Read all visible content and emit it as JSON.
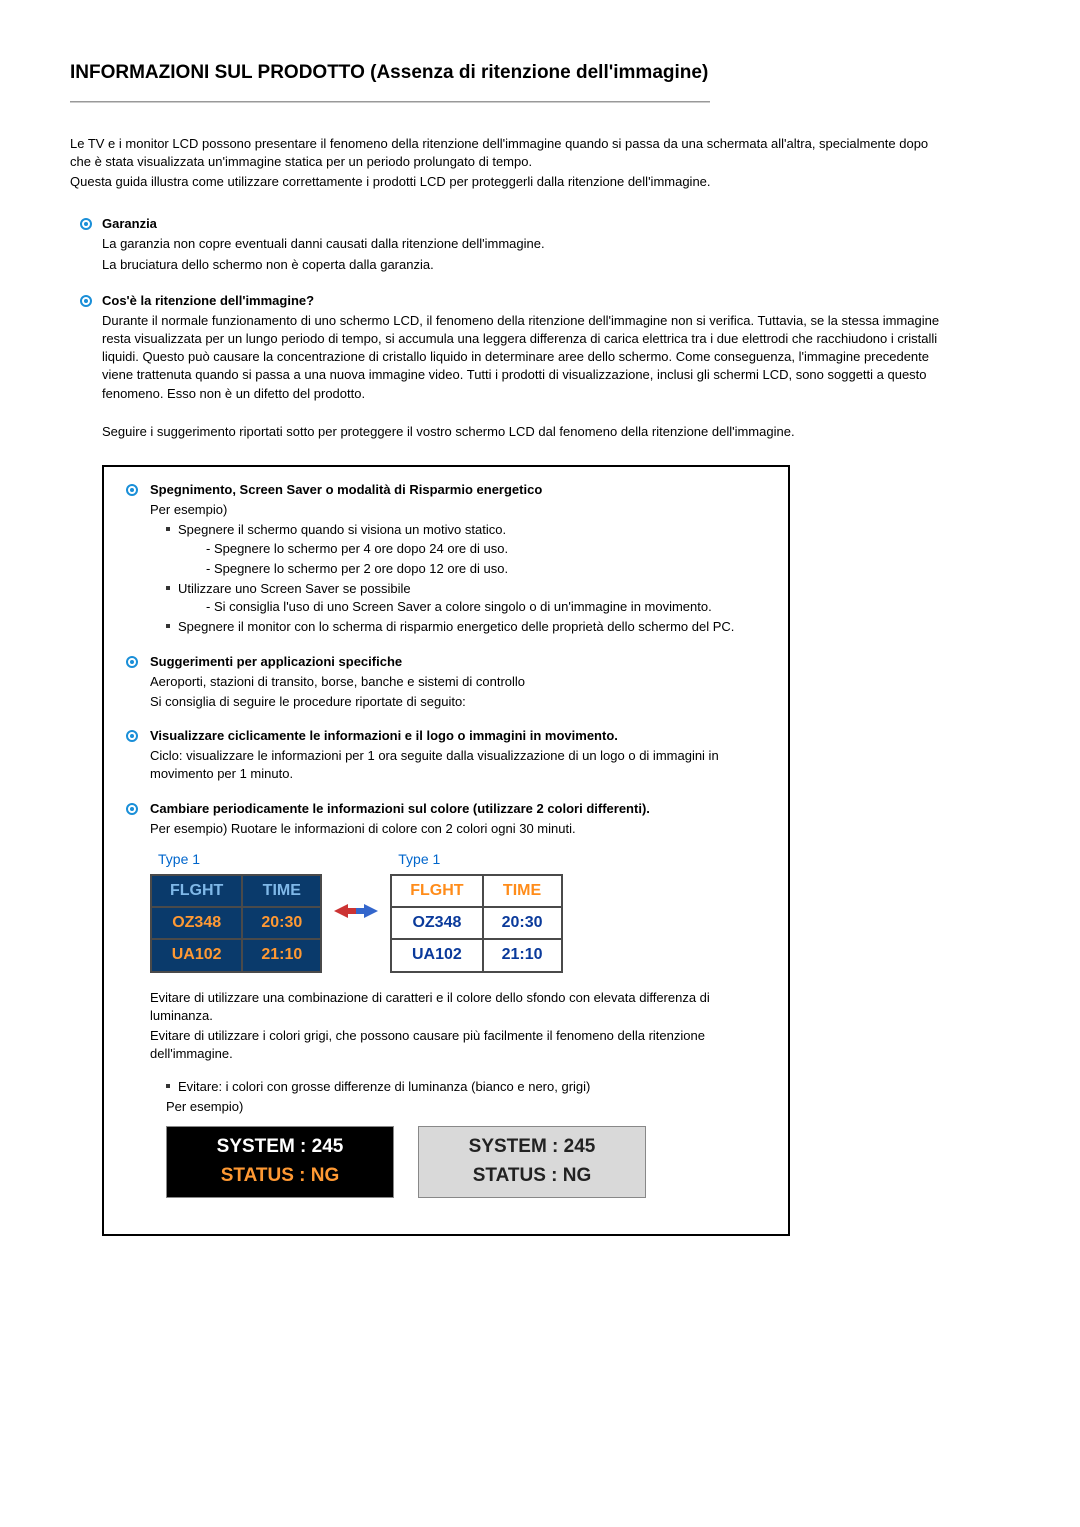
{
  "title": "INFORMAZIONI SUL PRODOTTO (Assenza di ritenzione dell'immagine)",
  "intro": {
    "p1": "Le TV e i monitor LCD possono presentare il fenomeno della ritenzione dell'immagine quando si passa da una schermata all'altra, specialmente dopo che è stata visualizzata un'immagine statica per un periodo prolungato di tempo.",
    "p2": "Questa guida illustra come utilizzare correttamente i prodotti LCD per proteggerli dalla ritenzione dell'immagine."
  },
  "garanzia": {
    "title": "Garanzia",
    "p1": "La garanzia non copre eventuali danni causati dalla ritenzione dell'immagine.",
    "p2": "La bruciatura dello schermo non è coperta dalla garanzia."
  },
  "cosè": {
    "title": "Cos'è la ritenzione dell'immagine?",
    "p1": "Durante il normale funzionamento di uno schermo LCD, il fenomeno della ritenzione dell'immagine non si verifica. Tuttavia, se la stessa immagine resta visualizzata per un lungo periodo di tempo, si accumula una leggera differenza di carica elettrica tra i due elettrodi che racchiudono i cristalli liquidi. Questo può causare la concentrazione di cristallo liquido in determinare aree dello schermo. Come conseguenza, l'immagine precedente viene trattenuta quando si passa a una nuova immagine video. Tutti i prodotti di visualizzazione, inclusi gli schermi LCD, sono soggetti a questo fenomeno. Esso non è un difetto del prodotto.",
    "p2": "Seguire i suggerimento riportati sotto per proteggere il vostro schermo LCD dal fenomeno della ritenzione dell'immagine."
  },
  "spegnimento": {
    "title": "Spegnimento, Screen Saver o modalità di Risparmio energetico",
    "intro": "Per esempio)",
    "li1": "Spegnere il schermo quando si visiona un motivo statico.",
    "li1a": "- Spegnere lo schermo per 4 ore dopo 24 ore di uso.",
    "li1b": "- Spegnere lo schermo per 2 ore dopo 12 ore di uso.",
    "li2": "Utilizzare uno Screen Saver se possibile",
    "li2a": "- Si consiglia l'uso di uno Screen Saver a colore singolo o di un'immagine in movimento.",
    "li3": "Spegnere il monitor con lo scherma di risparmio energetico delle proprietà dello schermo del PC."
  },
  "suggerimenti": {
    "title": "Suggerimenti per applicazioni specifiche",
    "p1": "Aeroporti, stazioni di transito, borse, banche e sistemi di controllo",
    "p2": "Si consiglia di seguire le procedure riportate di seguito:"
  },
  "visualizzare": {
    "title": "Visualizzare ciclicamente le informazioni e il logo o immagini in movimento.",
    "p1": "Ciclo: visualizzare le informazioni per 1 ora seguite dalla visualizzazione di un logo o di immagini in movimento per 1 minuto."
  },
  "cambiare": {
    "title": "Cambiare periodicamente le informazioni sul colore (utilizzare 2 colori differenti).",
    "p1": "Per esempio) Ruotare le informazioni di colore con 2 colori ogni 30 minuti."
  },
  "tables": {
    "type_label": "Type 1",
    "left": {
      "header_bg": "#0a3a6b",
      "header_fg": "#7fb8e8",
      "cell_bg": "#0a3a6b",
      "cell_fg": "#ff9933",
      "headers": [
        "FLGHT",
        "TIME"
      ],
      "rows": [
        [
          "OZ348",
          "20:30"
        ],
        [
          "UA102",
          "21:10"
        ]
      ]
    },
    "right": {
      "header_bg": "#ffffff",
      "header_fg": "#ff8c1a",
      "cell_bg": "#ffffff",
      "cell_fg": "#0a3a9b",
      "headers": [
        "FLGHT",
        "TIME"
      ],
      "rows": [
        [
          "OZ348",
          "20:30"
        ],
        [
          "UA102",
          "21:10"
        ]
      ]
    },
    "arrow_left_color": "#cc3333",
    "arrow_right_color": "#3366cc"
  },
  "evitare": {
    "p1": "Evitare di utilizzare una combinazione di caratteri e il colore dello sfondo con elevata differenza di luminanza.",
    "p2": "Evitare di utilizzare i colori grigi, che possono causare più facilmente il fenomeno della ritenzione dell'immagine.",
    "li1": "Evitare: i colori con grosse differenze di luminanza (bianco e nero, grigi)",
    "li1_after": "Per esempio)"
  },
  "status_boxes": {
    "box1": {
      "bg": "#000000",
      "line1_text": "SYSTEM : 245",
      "line1_color": "#ffffff",
      "line2_text": "STATUS : NG",
      "line2_color": "#ff9933"
    },
    "box2": {
      "bg": "#d9d9d9",
      "line1_text": "SYSTEM : 245",
      "line1_color": "#222222",
      "line2_text": "STATUS : NG",
      "line2_color": "#222222"
    }
  },
  "bullet_color": "#1a8fd8"
}
